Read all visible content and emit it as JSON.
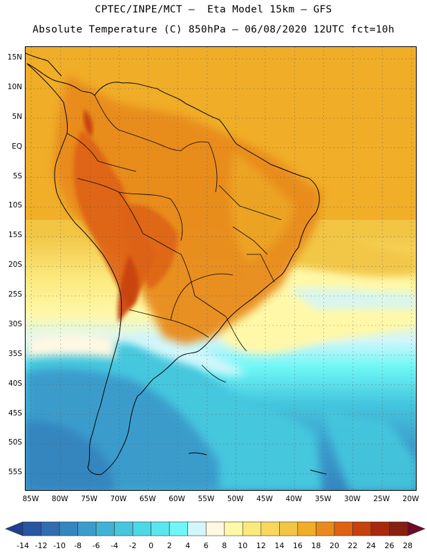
{
  "header": {
    "line1": "CPTEC/INPE/MCT –  Eta Model 15km – GFS",
    "line2": "Absolute Temperature (C) 850hPa – 06/08/2020 12UTC fct=10h"
  },
  "map": {
    "lat_labels": [
      "15N",
      "10N",
      "5N",
      "EQ",
      "5S",
      "10S",
      "15S",
      "20S",
      "25S",
      "30S",
      "35S",
      "40S",
      "45S",
      "50S",
      "55S"
    ],
    "lon_labels": [
      "85W",
      "80W",
      "75W",
      "70W",
      "65W",
      "60W",
      "55W",
      "50W",
      "45W",
      "40W",
      "35W",
      "30W",
      "25W",
      "20W"
    ],
    "lat_range": [
      17,
      -58
    ],
    "lon_range": [
      -86,
      -19
    ],
    "gridlines": "dotted"
  },
  "colorbar": {
    "ticks": [
      "-14",
      "-12",
      "-10",
      "-8",
      "-6",
      "-4",
      "-2",
      "0",
      "2",
      "4",
      "6",
      "8",
      "10",
      "12",
      "14",
      "16",
      "18",
      "20",
      "22",
      "24",
      "26",
      "28"
    ],
    "colors": [
      "#1f3f8f",
      "#2856a0",
      "#2f6db0",
      "#3585bf",
      "#3b9ccc",
      "#40b2d6",
      "#45c7de",
      "#4cd8e6",
      "#5ae6ef",
      "#6ff7f7",
      "#d2f6fb",
      "#fff8e2",
      "#fff8a8",
      "#fbe97d",
      "#f7d85c",
      "#f2c544",
      "#efad28",
      "#e88b1e",
      "#de6212",
      "#c8400e",
      "#a8280c",
      "#862010",
      "#6e0a28"
    ],
    "unit": "C"
  },
  "colors": {
    "ocean_warm": "#efad28",
    "land_hot": "#de6212",
    "cold": "#3b9ccc"
  }
}
